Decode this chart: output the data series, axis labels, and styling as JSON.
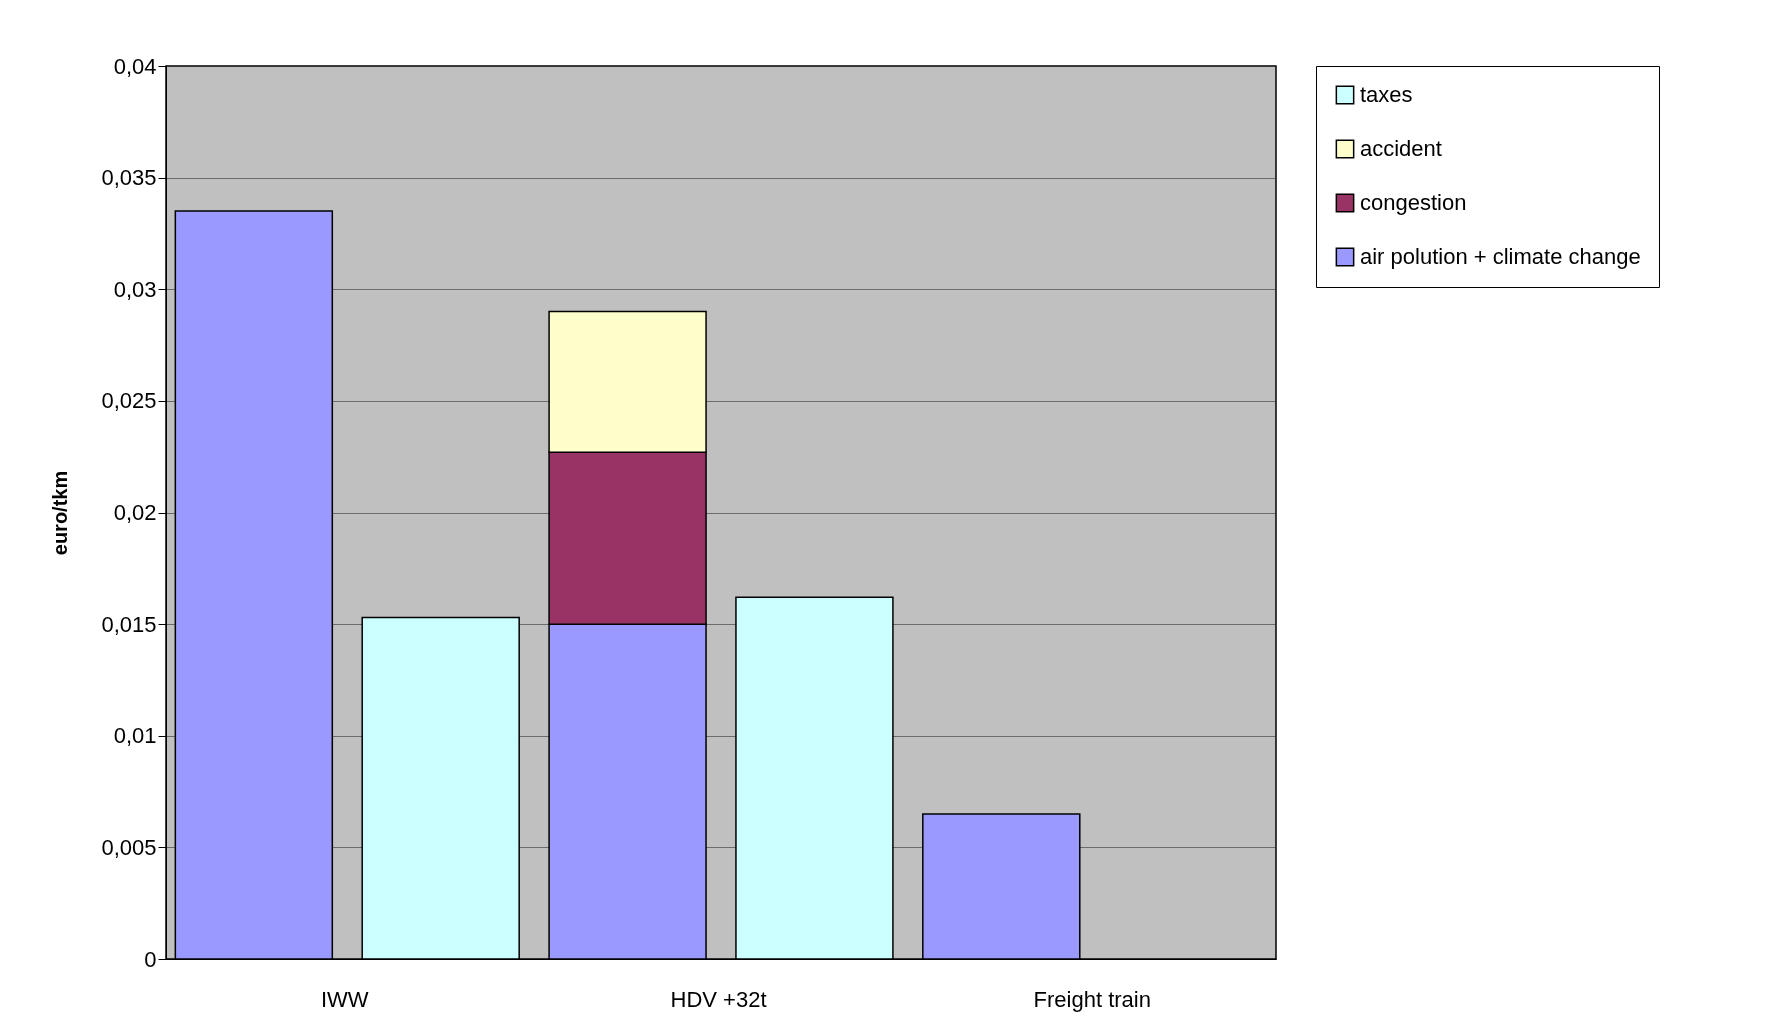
{
  "chart_data": {
    "type": "bar",
    "stacked": true,
    "ylabel": "euro/tkm",
    "categories": [
      "IWW",
      null,
      "HDV +32t",
      null,
      "Freight train",
      null
    ],
    "series": [
      {
        "name": "air polution + climate change",
        "color": "#9999ff",
        "values": [
          0.0335,
          null,
          0.015,
          null,
          0.0065,
          null
        ]
      },
      {
        "name": "congestion",
        "color": "#993366",
        "values": [
          null,
          null,
          0.0077,
          null,
          null,
          null
        ]
      },
      {
        "name": "accident",
        "color": "#ffffcc",
        "values": [
          null,
          null,
          0.0063,
          null,
          null,
          null
        ]
      },
      {
        "name": "taxes",
        "color": "#ccffff",
        "values": [
          null,
          0.0153,
          null,
          0.0162,
          null,
          null
        ]
      }
    ],
    "ylim": [
      0,
      0.04
    ],
    "yticks": [
      0,
      {
        "value": 0.005,
        "label": "0,005"
      },
      {
        "value": 0.01,
        "label": "0,01"
      },
      {
        "value": 0.015,
        "label": "0,015"
      },
      {
        "value": 0.02,
        "label": "0,02"
      },
      {
        "value": 0.025,
        "label": "0,025"
      },
      {
        "value": 0.03,
        "label": "0,03"
      },
      {
        "value": 0.035,
        "label": "0,035"
      },
      {
        "value": 0.04,
        "label": "0,04"
      }
    ],
    "grid": "y",
    "legend": "right"
  }
}
